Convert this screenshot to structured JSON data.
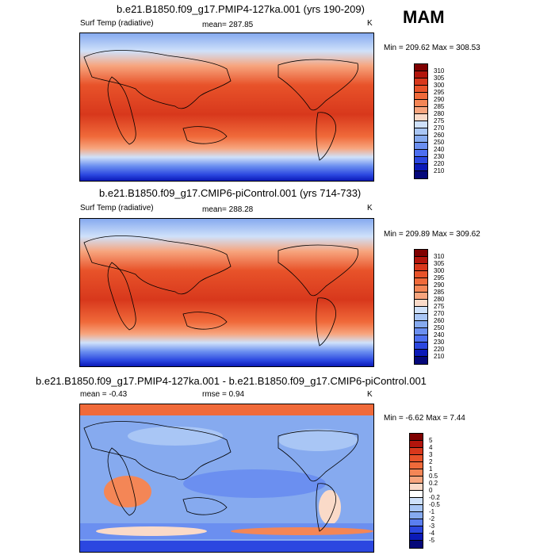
{
  "season": "MAM",
  "panels": [
    {
      "title": "b.e21.B1850.f09_g17.PMIP4-127ka.001 (yrs 190-209)",
      "left_label": "Surf Temp (radiative)",
      "mean_label": "mean= 287.85",
      "units": "K",
      "minmax": "Min = 209.62 Max = 308.53",
      "colorbar": {
        "levels": [
          "310",
          "305",
          "300",
          "295",
          "290",
          "285",
          "280",
          "275",
          "270",
          "260",
          "250",
          "240",
          "230",
          "220",
          "210"
        ],
        "colors": [
          "#7f0000",
          "#b2150c",
          "#d8381c",
          "#e8532a",
          "#f06a3a",
          "#f48656",
          "#f7a57e",
          "#fadac8",
          "#cfe1fa",
          "#a9c6f5",
          "#86aaef",
          "#6b8ff0",
          "#4d6ff0",
          "#2b47e0",
          "#0b1ab8",
          "#05087a"
        ]
      }
    },
    {
      "title": "b.e21.B1850.f09_g17.CMIP6-piControl.001 (yrs 714-733)",
      "left_label": "Surf Temp (radiative)",
      "mean_label": "mean= 288.28",
      "units": "K",
      "minmax": "Min = 209.89 Max = 309.62",
      "colorbar": {
        "levels": [
          "310",
          "305",
          "300",
          "295",
          "290",
          "285",
          "280",
          "275",
          "270",
          "260",
          "250",
          "240",
          "230",
          "220",
          "210"
        ],
        "colors": [
          "#7f0000",
          "#b2150c",
          "#d8381c",
          "#e8532a",
          "#f06a3a",
          "#f48656",
          "#f7a57e",
          "#fadac8",
          "#cfe1fa",
          "#a9c6f5",
          "#86aaef",
          "#6b8ff0",
          "#4d6ff0",
          "#2b47e0",
          "#0b1ab8",
          "#05087a"
        ]
      }
    },
    {
      "title": "b.e21.B1850.f09_g17.PMIP4-127ka.001 - b.e21.B1850.f09_g17.CMIP6-piControl.001",
      "mean_label": "mean =  -0.43",
      "rmse_label": "rmse =   0.94",
      "units": "K",
      "minmax": "Min =  -6.62 Max =   7.44",
      "colorbar": {
        "levels": [
          "5",
          "4",
          "3",
          "2",
          "1",
          "0.5",
          "0.2",
          "0",
          "-0.2",
          "-0.5",
          "-1",
          "-2",
          "-3",
          "-4",
          "-5"
        ],
        "colors": [
          "#7f0000",
          "#b2150c",
          "#d8381c",
          "#e8532a",
          "#f06a3a",
          "#f48656",
          "#f7a57e",
          "#fadac8",
          "#ffffff",
          "#cfe1fa",
          "#a9c6f5",
          "#86aaef",
          "#5a7ff0",
          "#2b47e0",
          "#0b1ab8",
          "#05087a"
        ]
      }
    }
  ]
}
